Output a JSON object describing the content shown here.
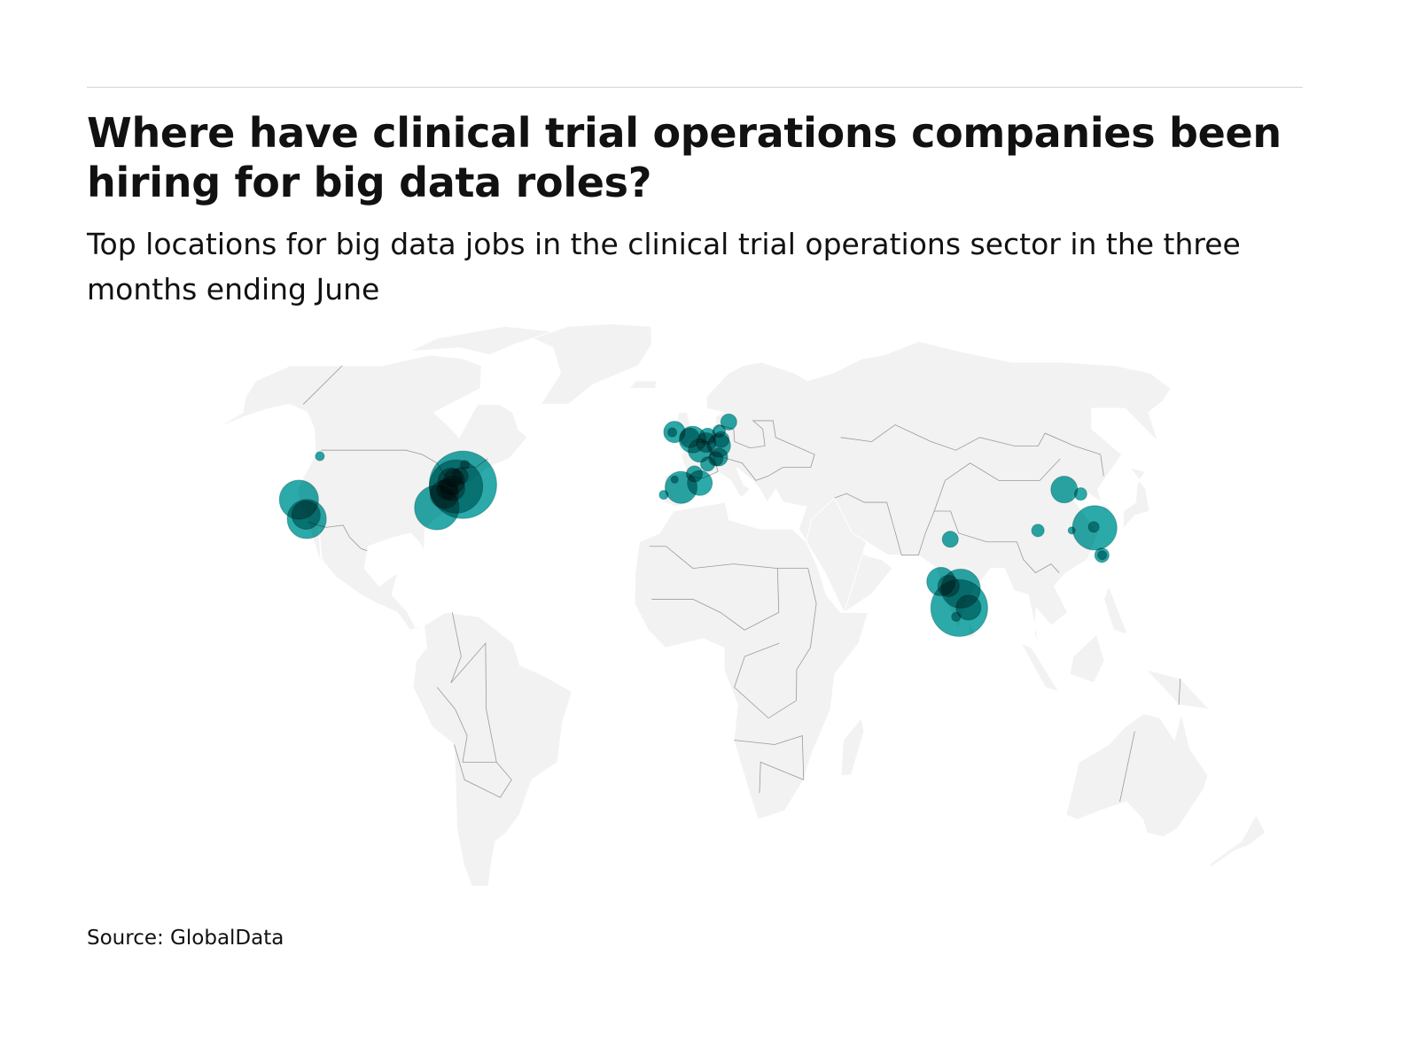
{
  "header": {
    "title": "Where have clinical trial operations companies been hiring for big data roles?",
    "subtitle": "Top locations for big data jobs in the clinical trial operations sector in the three months ending June"
  },
  "footer": {
    "source": "Source: GlobalData"
  },
  "colors": {
    "bubble": "#1aa3a3",
    "land": "#f2f2f2",
    "border": "#9a9a9a"
  },
  "chart_data": {
    "type": "bubble-map",
    "projection": "robinson",
    "size_encoding": "relative job count",
    "points": [
      {
        "lon": -122.3,
        "lat": 47.6,
        "size": 5
      },
      {
        "lon": -122.2,
        "lat": 37.6,
        "size": 22
      },
      {
        "lon": -117.6,
        "lat": 33.2,
        "size": 22
      },
      {
        "lon": -118.2,
        "lat": 34.1,
        "size": 16
      },
      {
        "lon": -73.8,
        "lat": 45.6,
        "size": 5
      },
      {
        "lon": -72.5,
        "lat": 41.0,
        "size": 38
      },
      {
        "lon": -74.5,
        "lat": 40.6,
        "size": 30
      },
      {
        "lon": -78.8,
        "lat": 35.8,
        "size": 25
      },
      {
        "lon": -77.5,
        "lat": 38.8,
        "size": 16
      },
      {
        "lon": -76.5,
        "lat": 41.8,
        "size": 15
      },
      {
        "lon": -75.5,
        "lat": 40.2,
        "size": 14
      },
      {
        "lon": -76.2,
        "lat": 42.6,
        "size": 10
      },
      {
        "lon": -74.2,
        "lat": 43.0,
        "size": 9
      },
      {
        "lon": -77.0,
        "lat": 40.0,
        "size": 12
      },
      {
        "lon": -6.3,
        "lat": 53.3,
        "size": 12
      },
      {
        "lon": -7.0,
        "lat": 53.2,
        "size": 5
      },
      {
        "lon": -0.1,
        "lat": 51.5,
        "size": 15
      },
      {
        "lon": -1.0,
        "lat": 51.9,
        "size": 11
      },
      {
        "lon": 2.3,
        "lat": 48.9,
        "size": 13
      },
      {
        "lon": 4.4,
        "lat": 50.8,
        "size": 11
      },
      {
        "lon": 5.0,
        "lat": 52.3,
        "size": 9
      },
      {
        "lon": 8.7,
        "lat": 50.1,
        "size": 13
      },
      {
        "lon": 9.5,
        "lat": 51.5,
        "size": 9
      },
      {
        "lon": 12.5,
        "lat": 55.7,
        "size": 9
      },
      {
        "lon": 9.0,
        "lat": 53.5,
        "size": 7
      },
      {
        "lon": 8.5,
        "lat": 47.4,
        "size": 10
      },
      {
        "lon": 7.5,
        "lat": 47.0,
        "size": 8
      },
      {
        "lon": 4.8,
        "lat": 45.8,
        "size": 8
      },
      {
        "lon": -3.7,
        "lat": 40.4,
        "size": 18
      },
      {
        "lon": 2.2,
        "lat": 41.4,
        "size": 14
      },
      {
        "lon": 0.5,
        "lat": 43.5,
        "size": 9
      },
      {
        "lon": -9.1,
        "lat": 38.7,
        "size": 5
      },
      {
        "lon": -5.8,
        "lat": 42.2,
        "size": 4
      },
      {
        "lon": 77.2,
        "lat": 28.6,
        "size": 9
      },
      {
        "lon": 72.9,
        "lat": 19.0,
        "size": 16
      },
      {
        "lon": 75.0,
        "lat": 18.0,
        "size": 12
      },
      {
        "lon": 78.5,
        "lat": 17.4,
        "size": 22
      },
      {
        "lon": 77.6,
        "lat": 13.0,
        "size": 32
      },
      {
        "lon": 80.3,
        "lat": 13.1,
        "size": 14
      },
      {
        "lon": 76.5,
        "lat": 11.0,
        "size": 5
      },
      {
        "lon": 116.4,
        "lat": 39.9,
        "size": 15
      },
      {
        "lon": 121.0,
        "lat": 38.9,
        "size": 7
      },
      {
        "lon": 104.1,
        "lat": 30.6,
        "size": 7
      },
      {
        "lon": 114.3,
        "lat": 30.6,
        "size": 4
      },
      {
        "lon": 121.5,
        "lat": 31.2,
        "size": 25
      },
      {
        "lon": 121.3,
        "lat": 31.4,
        "size": 6
      },
      {
        "lon": 121.5,
        "lat": 25.0,
        "size": 8
      },
      {
        "lon": 121.6,
        "lat": 25.0,
        "size": 5
      }
    ]
  }
}
